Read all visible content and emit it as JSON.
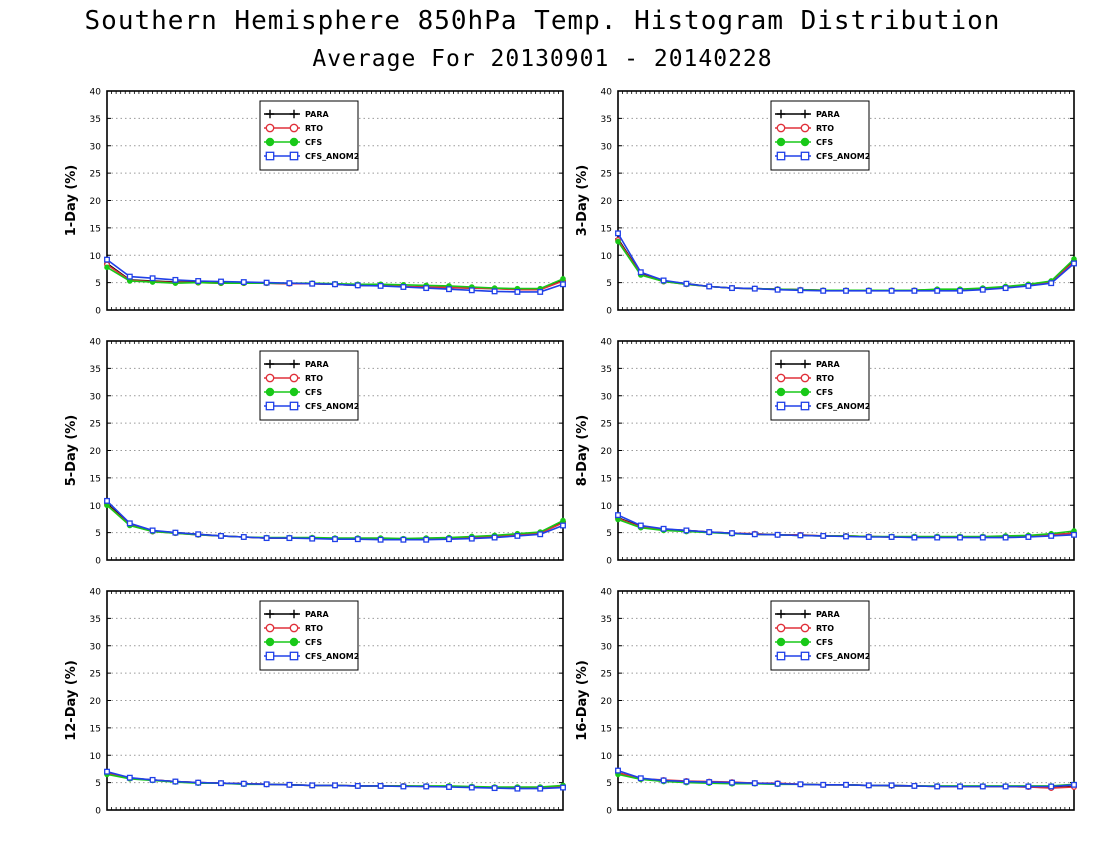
{
  "title": "Southern Hemisphere 850hPa Temp. Histogram Distribution",
  "subtitle": "Average For 20130901 - 20140228",
  "series_styles": [
    {
      "name": "PARA",
      "color": "#000000",
      "marker": "plus"
    },
    {
      "name": "RTO",
      "color": "#e0303a",
      "marker": "open-circle"
    },
    {
      "name": "CFS",
      "color": "#18c818",
      "marker": "filled-circle"
    },
    {
      "name": "CFS_ANOM2",
      "color": "#2040e8",
      "marker": "open-square"
    }
  ],
  "chart_data": [
    {
      "type": "line",
      "ylabel": "1-Day (%)",
      "ylim": [
        0,
        40
      ],
      "yticks": [
        "0",
        "5",
        "10",
        "15",
        "20",
        "25",
        "30",
        "35",
        "40"
      ],
      "grid": true,
      "legend": "top-center",
      "x": [
        1,
        2,
        3,
        4,
        5,
        6,
        7,
        8,
        9,
        10,
        11,
        12,
        13,
        14,
        15,
        16,
        17,
        18,
        19,
        20,
        21
      ],
      "series": [
        {
          "name": "PARA",
          "values": [
            8.5,
            5.5,
            5.3,
            5.1,
            5.1,
            5.0,
            5.0,
            4.9,
            4.8,
            4.8,
            4.7,
            4.5,
            4.5,
            4.3,
            4.2,
            4.1,
            4.0,
            3.9,
            3.8,
            3.8,
            5.4
          ]
        },
        {
          "name": "RTO",
          "values": [
            8.3,
            5.4,
            5.2,
            5.0,
            5.0,
            4.9,
            4.9,
            4.9,
            4.8,
            4.8,
            4.7,
            4.5,
            4.5,
            4.3,
            4.2,
            4.1,
            4.0,
            3.9,
            3.7,
            3.7,
            5.3
          ]
        },
        {
          "name": "CFS",
          "values": [
            7.8,
            5.3,
            5.1,
            4.9,
            5.0,
            4.9,
            4.9,
            4.9,
            4.9,
            4.9,
            4.8,
            4.7,
            4.7,
            4.6,
            4.5,
            4.4,
            4.2,
            4.0,
            3.9,
            3.9,
            5.7
          ]
        },
        {
          "name": "CFS_ANOM2",
          "values": [
            9.2,
            6.1,
            5.8,
            5.5,
            5.3,
            5.2,
            5.1,
            5.0,
            4.9,
            4.8,
            4.7,
            4.5,
            4.4,
            4.2,
            4.0,
            3.8,
            3.6,
            3.4,
            3.3,
            3.3,
            4.7
          ]
        }
      ]
    },
    {
      "type": "line",
      "ylabel": "3-Day (%)",
      "ylim": [
        0,
        40
      ],
      "yticks": [
        "0",
        "5",
        "10",
        "15",
        "20",
        "25",
        "30",
        "35",
        "40"
      ],
      "grid": true,
      "legend": "top-center",
      "x": [
        1,
        2,
        3,
        4,
        5,
        6,
        7,
        8,
        9,
        10,
        11,
        12,
        13,
        14,
        15,
        16,
        17,
        18,
        19,
        20,
        21
      ],
      "series": [
        {
          "name": "PARA",
          "values": [
            13.0,
            6.6,
            5.3,
            4.8,
            4.3,
            4.0,
            3.9,
            3.8,
            3.7,
            3.6,
            3.6,
            3.6,
            3.6,
            3.6,
            3.7,
            3.7,
            3.9,
            4.2,
            4.6,
            5.2,
            9.0
          ]
        },
        {
          "name": "RTO",
          "values": [
            12.8,
            6.5,
            5.2,
            4.7,
            4.3,
            4.0,
            3.9,
            3.8,
            3.7,
            3.6,
            3.6,
            3.6,
            3.6,
            3.6,
            3.7,
            3.7,
            3.9,
            4.2,
            4.6,
            5.1,
            8.8
          ]
        },
        {
          "name": "CFS",
          "values": [
            12.5,
            6.4,
            5.2,
            4.7,
            4.3,
            4.0,
            3.9,
            3.8,
            3.7,
            3.6,
            3.6,
            3.6,
            3.6,
            3.6,
            3.8,
            3.8,
            4.0,
            4.3,
            4.7,
            5.3,
            9.3
          ]
        },
        {
          "name": "CFS_ANOM2",
          "values": [
            14.0,
            6.9,
            5.4,
            4.8,
            4.3,
            4.0,
            3.9,
            3.7,
            3.6,
            3.5,
            3.5,
            3.5,
            3.5,
            3.5,
            3.5,
            3.5,
            3.7,
            4.0,
            4.4,
            4.9,
            8.5
          ]
        }
      ]
    },
    {
      "type": "line",
      "ylabel": "5-Day (%)",
      "ylim": [
        0,
        40
      ],
      "yticks": [
        "0",
        "5",
        "10",
        "15",
        "20",
        "25",
        "30",
        "35",
        "40"
      ],
      "grid": true,
      "legend": "top-center",
      "x": [
        1,
        2,
        3,
        4,
        5,
        6,
        7,
        8,
        9,
        10,
        11,
        12,
        13,
        14,
        15,
        16,
        17,
        18,
        19,
        20,
        21
      ],
      "series": [
        {
          "name": "PARA",
          "values": [
            10.3,
            6.5,
            5.3,
            5.0,
            4.7,
            4.4,
            4.2,
            4.0,
            4.0,
            4.0,
            3.9,
            3.9,
            3.8,
            3.8,
            3.9,
            4.0,
            4.1,
            4.3,
            4.6,
            5.0,
            7.0
          ]
        },
        {
          "name": "RTO",
          "values": [
            10.1,
            6.4,
            5.2,
            4.9,
            4.6,
            4.4,
            4.2,
            4.0,
            4.0,
            4.0,
            3.9,
            3.9,
            3.8,
            3.8,
            3.9,
            4.0,
            4.1,
            4.3,
            4.6,
            4.9,
            6.8
          ]
        },
        {
          "name": "CFS",
          "values": [
            10.0,
            6.3,
            5.2,
            4.9,
            4.6,
            4.4,
            4.2,
            4.1,
            4.1,
            4.1,
            4.0,
            4.0,
            4.0,
            3.9,
            4.0,
            4.1,
            4.3,
            4.5,
            4.8,
            5.1,
            7.2
          ]
        },
        {
          "name": "CFS_ANOM2",
          "values": [
            10.8,
            6.7,
            5.4,
            5.0,
            4.7,
            4.4,
            4.2,
            4.0,
            4.0,
            3.9,
            3.8,
            3.8,
            3.7,
            3.7,
            3.7,
            3.8,
            3.9,
            4.1,
            4.4,
            4.7,
            6.3
          ]
        }
      ]
    },
    {
      "type": "line",
      "ylabel": "8-Day (%)",
      "ylim": [
        0,
        40
      ],
      "yticks": [
        "0",
        "5",
        "10",
        "15",
        "20",
        "25",
        "30",
        "35",
        "40"
      ],
      "grid": true,
      "legend": "top-center",
      "x": [
        1,
        2,
        3,
        4,
        5,
        6,
        7,
        8,
        9,
        10,
        11,
        12,
        13,
        14,
        15,
        16,
        17,
        18,
        19,
        20,
        21
      ],
      "series": [
        {
          "name": "PARA",
          "values": [
            7.7,
            6.1,
            5.6,
            5.4,
            5.1,
            4.9,
            4.7,
            4.6,
            4.5,
            4.4,
            4.4,
            4.3,
            4.2,
            4.2,
            4.2,
            4.2,
            4.2,
            4.2,
            4.3,
            4.6,
            4.9
          ]
        },
        {
          "name": "RTO",
          "values": [
            7.6,
            6.0,
            5.6,
            5.4,
            5.1,
            4.9,
            4.8,
            4.6,
            4.6,
            4.4,
            4.4,
            4.3,
            4.2,
            4.2,
            4.2,
            4.2,
            4.2,
            4.2,
            4.3,
            4.6,
            4.9
          ]
        },
        {
          "name": "CFS",
          "values": [
            7.4,
            5.9,
            5.4,
            5.2,
            5.0,
            4.8,
            4.7,
            4.6,
            4.5,
            4.4,
            4.4,
            4.3,
            4.3,
            4.3,
            4.3,
            4.3,
            4.3,
            4.4,
            4.5,
            4.8,
            5.3
          ]
        },
        {
          "name": "CFS_ANOM2",
          "values": [
            8.2,
            6.3,
            5.7,
            5.4,
            5.1,
            4.9,
            4.7,
            4.6,
            4.5,
            4.4,
            4.3,
            4.2,
            4.2,
            4.1,
            4.1,
            4.1,
            4.1,
            4.1,
            4.2,
            4.4,
            4.6
          ]
        }
      ]
    },
    {
      "type": "line",
      "ylabel": "12-Day (%)",
      "ylim": [
        0,
        40
      ],
      "yticks": [
        "0",
        "5",
        "10",
        "15",
        "20",
        "25",
        "30",
        "35",
        "40"
      ],
      "grid": true,
      "legend": "top-center",
      "x": [
        1,
        2,
        3,
        4,
        5,
        6,
        7,
        8,
        9,
        10,
        11,
        12,
        13,
        14,
        15,
        16,
        17,
        18,
        19,
        20,
        21
      ],
      "series": [
        {
          "name": "PARA",
          "values": [
            6.8,
            5.8,
            5.5,
            5.2,
            5.0,
            4.9,
            4.8,
            4.7,
            4.6,
            4.5,
            4.5,
            4.4,
            4.4,
            4.4,
            4.3,
            4.3,
            4.2,
            4.1,
            4.0,
            4.0,
            4.3
          ]
        },
        {
          "name": "RTO",
          "values": [
            6.7,
            5.8,
            5.5,
            5.2,
            5.0,
            4.9,
            4.8,
            4.7,
            4.6,
            4.5,
            4.5,
            4.4,
            4.4,
            4.4,
            4.3,
            4.3,
            4.2,
            4.1,
            4.0,
            4.0,
            4.3
          ]
        },
        {
          "name": "CFS",
          "values": [
            6.5,
            5.7,
            5.4,
            5.1,
            4.9,
            4.9,
            4.7,
            4.7,
            4.6,
            4.5,
            4.5,
            4.4,
            4.4,
            4.4,
            4.4,
            4.4,
            4.3,
            4.2,
            4.2,
            4.2,
            4.5
          ]
        },
        {
          "name": "CFS_ANOM2",
          "values": [
            7.0,
            5.9,
            5.5,
            5.2,
            5.0,
            4.9,
            4.8,
            4.7,
            4.6,
            4.5,
            4.5,
            4.4,
            4.4,
            4.3,
            4.3,
            4.2,
            4.1,
            4.0,
            3.9,
            3.9,
            4.1
          ]
        }
      ]
    },
    {
      "type": "line",
      "ylabel": "16-Day (%)",
      "ylim": [
        0,
        40
      ],
      "yticks": [
        "0",
        "5",
        "10",
        "15",
        "20",
        "25",
        "30",
        "35",
        "40"
      ],
      "grid": true,
      "legend": "top-center",
      "x": [
        1,
        2,
        3,
        4,
        5,
        6,
        7,
        8,
        9,
        10,
        11,
        12,
        13,
        14,
        15,
        16,
        17,
        18,
        19,
        20,
        21
      ],
      "series": [
        {
          "name": "PARA",
          "values": [
            6.8,
            5.7,
            5.4,
            5.2,
            5.1,
            5.0,
            4.9,
            4.8,
            4.7,
            4.6,
            4.6,
            4.5,
            4.4,
            4.4,
            4.3,
            4.3,
            4.3,
            4.3,
            4.2,
            4.1,
            4.3
          ]
        },
        {
          "name": "RTO",
          "values": [
            6.8,
            5.7,
            5.5,
            5.3,
            5.2,
            5.1,
            4.9,
            4.9,
            4.7,
            4.6,
            4.6,
            4.5,
            4.5,
            4.4,
            4.3,
            4.3,
            4.3,
            4.3,
            4.2,
            4.0,
            4.2
          ]
        },
        {
          "name": "CFS",
          "values": [
            6.5,
            5.6,
            5.2,
            5.0,
            4.9,
            4.8,
            4.8,
            4.7,
            4.7,
            4.6,
            4.6,
            4.5,
            4.5,
            4.4,
            4.4,
            4.4,
            4.4,
            4.4,
            4.4,
            4.4,
            4.7
          ]
        },
        {
          "name": "CFS_ANOM2",
          "values": [
            7.2,
            5.8,
            5.4,
            5.2,
            5.1,
            5.0,
            4.9,
            4.8,
            4.7,
            4.6,
            4.6,
            4.5,
            4.5,
            4.4,
            4.3,
            4.3,
            4.3,
            4.3,
            4.3,
            4.3,
            4.6
          ]
        }
      ]
    }
  ]
}
